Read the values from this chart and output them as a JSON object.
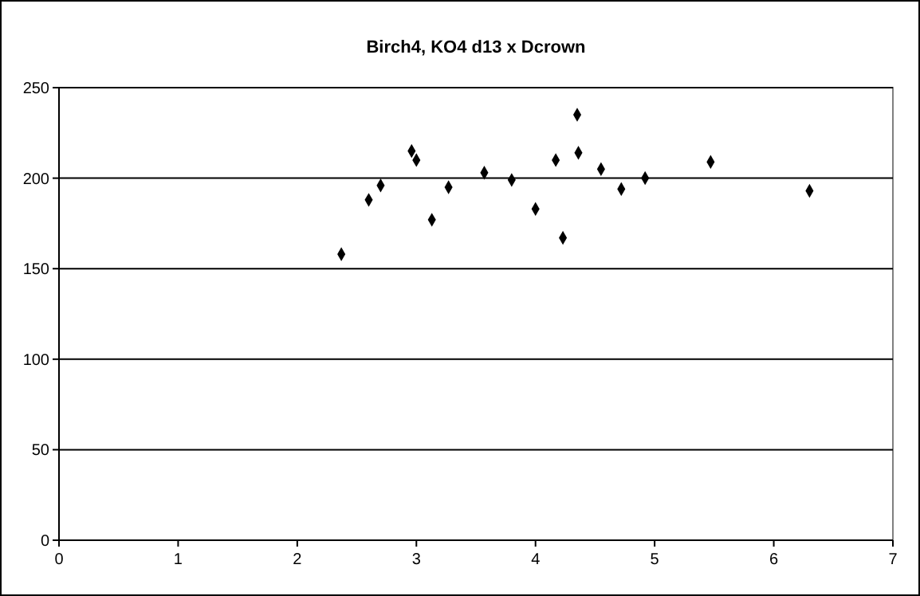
{
  "chart_data": {
    "type": "scatter",
    "title": "Birch4, KO4 d13 x Dcrown",
    "x": [
      2.37,
      2.6,
      2.7,
      2.96,
      3.0,
      3.13,
      3.27,
      3.57,
      3.8,
      4.0,
      4.17,
      4.23,
      4.35,
      4.36,
      4.55,
      4.72,
      4.92,
      5.47,
      6.3
    ],
    "values": [
      158,
      188,
      196,
      215,
      210,
      177,
      195,
      203,
      199,
      183,
      210,
      167,
      235,
      214,
      205,
      194,
      200,
      209,
      193
    ],
    "color": "#000000",
    "marker": "diamond",
    "xlim": [
      0,
      7
    ],
    "xticks": [
      0,
      1,
      2,
      3,
      4,
      5,
      6,
      7
    ],
    "ylim": [
      0,
      250
    ],
    "yticks": [
      0,
      50,
      100,
      150,
      200,
      250
    ],
    "grid": "y"
  }
}
